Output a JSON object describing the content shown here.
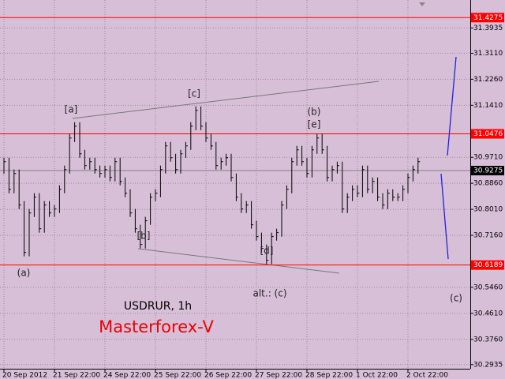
{
  "chart_data": {
    "type": "ohlc",
    "symbol_label": "USDRUR, 1h",
    "brand": "Masterforex-V",
    "categories": [
      "20 Sep 2012",
      null,
      null,
      null,
      null,
      null,
      null,
      null,
      null,
      null,
      "21 Sep 22:00",
      null,
      null,
      null,
      null,
      null,
      null,
      null,
      null,
      null,
      "24 Sep 22:00",
      null,
      null,
      null,
      null,
      null,
      null,
      null,
      null,
      null,
      "25 Sep 22:00",
      null,
      null,
      null,
      null,
      null,
      null,
      null,
      null,
      null,
      "26 Sep 22:00",
      null,
      null,
      null,
      null,
      null,
      null,
      null,
      null,
      null,
      "27 Sep 22:00",
      null,
      null,
      null,
      null,
      null,
      null,
      null,
      null,
      null,
      "28 Sep 22:00",
      null,
      null,
      null,
      null,
      null,
      null,
      null,
      null,
      null,
      "1 Oct 22:00",
      null,
      null,
      null,
      null,
      null,
      null,
      null,
      null,
      null,
      "2 Oct 22:00",
      null,
      null
    ],
    "high": [
      30.9696,
      30.9696,
      30.931,
      30.931,
      30.8279,
      30.8021,
      30.8537,
      30.8537,
      30.8279,
      30.8279,
      30.815,
      30.8794,
      30.9439,
      31.047,
      31.0856,
      31.0856,
      30.9954,
      30.9696,
      30.9696,
      30.9439,
      30.9439,
      30.9439,
      30.9696,
      30.9696,
      30.9052,
      30.8666,
      30.8021,
      30.7506,
      30.7764,
      30.8537,
      30.8666,
      30.9439,
      31.0212,
      31.0212,
      30.9825,
      30.9954,
      31.0212,
      31.0856,
      31.1372,
      31.1372,
      31.0856,
      31.047,
      31.0212,
      30.9696,
      30.9825,
      30.9825,
      30.9181,
      30.8537,
      30.8279,
      30.8279,
      30.7635,
      30.7248,
      30.6861,
      30.7248,
      30.7377,
      30.8279,
      30.8794,
      30.9696,
      31.0083,
      31.0083,
      30.9696,
      31.0083,
      31.047,
      31.047,
      31.0083,
      30.9439,
      30.9568,
      30.9568,
      30.8537,
      30.8794,
      30.8794,
      30.9439,
      30.9439,
      30.9052,
      30.9052,
      30.8537,
      30.8666,
      30.8666,
      30.8537,
      30.8794,
      30.9181,
      30.9439,
      30.9696
    ],
    "low": [
      30.917,
      30.8534,
      30.8534,
      30.8019,
      30.6473,
      30.6473,
      30.7761,
      30.7246,
      30.7246,
      30.7761,
      30.7761,
      30.789,
      30.8534,
      30.9179,
      31.021,
      30.9694,
      30.9308,
      30.9308,
      30.9179,
      30.905,
      30.905,
      30.8921,
      30.8921,
      30.8792,
      30.8406,
      30.7761,
      30.7246,
      30.673,
      30.673,
      30.7504,
      30.8277,
      30.8406,
      30.9179,
      30.9565,
      30.9179,
      30.9179,
      30.9694,
      30.9952,
      31.0596,
      31.0596,
      31.021,
      30.9952,
      30.9308,
      30.9308,
      30.9436,
      30.8921,
      30.8277,
      30.789,
      30.789,
      30.7375,
      30.6988,
      30.6601,
      30.6215,
      30.6215,
      30.6988,
      30.7117,
      30.8019,
      30.8534,
      30.9436,
      30.9436,
      30.905,
      30.905,
      30.9823,
      30.9823,
      30.8921,
      30.8921,
      30.9179,
      30.789,
      30.789,
      30.8277,
      30.8406,
      30.8406,
      30.8534,
      30.8534,
      30.8277,
      30.8019,
      30.8019,
      30.8277,
      30.8277,
      30.8277,
      30.8534,
      30.8921,
      30.9179
    ],
    "close": [
      30.9566,
      30.8664,
      30.918,
      30.8149,
      30.6603,
      30.7891,
      30.8407,
      30.7376,
      30.8149,
      30.7891,
      30.802,
      30.8664,
      30.9309,
      31.034,
      31.0726,
      30.9824,
      30.9438,
      30.9566,
      30.9309,
      30.918,
      30.9309,
      30.9051,
      30.9566,
      30.8922,
      30.8536,
      30.7891,
      30.7376,
      30.686,
      30.7634,
      30.8407,
      30.8536,
      30.9309,
      31.0082,
      30.9695,
      30.9309,
      30.9824,
      31.0082,
      31.0726,
      31.1242,
      31.0726,
      31.034,
      31.0082,
      30.9438,
      30.9566,
      30.9695,
      30.9051,
      30.8407,
      30.802,
      30.8149,
      30.7505,
      30.7118,
      30.6731,
      30.6345,
      30.7118,
      30.7247,
      30.8149,
      30.8664,
      30.9566,
      30.9953,
      30.9566,
      30.918,
      30.9953,
      31.034,
      30.9953,
      30.9051,
      30.9309,
      30.9438,
      30.802,
      30.8407,
      30.8664,
      30.8536,
      30.9309,
      30.8664,
      30.8922,
      30.8407,
      30.8149,
      30.8536,
      30.8407,
      30.8407,
      30.8664,
      30.9051,
      30.9309,
      30.9566
    ],
    "bar_color": "#000000",
    "ylim": [
      30.28,
      31.485
    ],
    "yticks": [
      30.2935,
      {
        "value": 30.376,
        "label": "30.3760"
      },
      {
        "value": 30.461,
        "label": "30.4610"
      },
      {
        "value": 30.546,
        "label": "30.5460"
      },
      {
        "value": 30.716,
        "label": "30.7160"
      },
      {
        "value": 30.801,
        "label": "30.8010"
      },
      {
        "value": 30.886,
        "label": "30.8860"
      },
      {
        "value": 30.971,
        "label": "30.9710"
      },
      {
        "value": 31.141,
        "label": "31.1410"
      },
      {
        "value": 31.226,
        "label": "31.2260"
      },
      {
        "value": 31.311,
        "label": "31.3110"
      },
      31.3935
    ],
    "levels": [
      {
        "value": 31.4275,
        "color": "#ff0000"
      },
      {
        "value": 31.0476,
        "color": "#ff0000"
      },
      {
        "value": 30.6189,
        "color": "#ff0000"
      }
    ],
    "current_price": 30.9275,
    "grid": true,
    "annotations": [
      "[a]",
      "[b]",
      "[c]",
      "(b)",
      "[e]",
      "[d]",
      "(a)",
      "alt.: (c)",
      "(c)"
    ]
  }
}
